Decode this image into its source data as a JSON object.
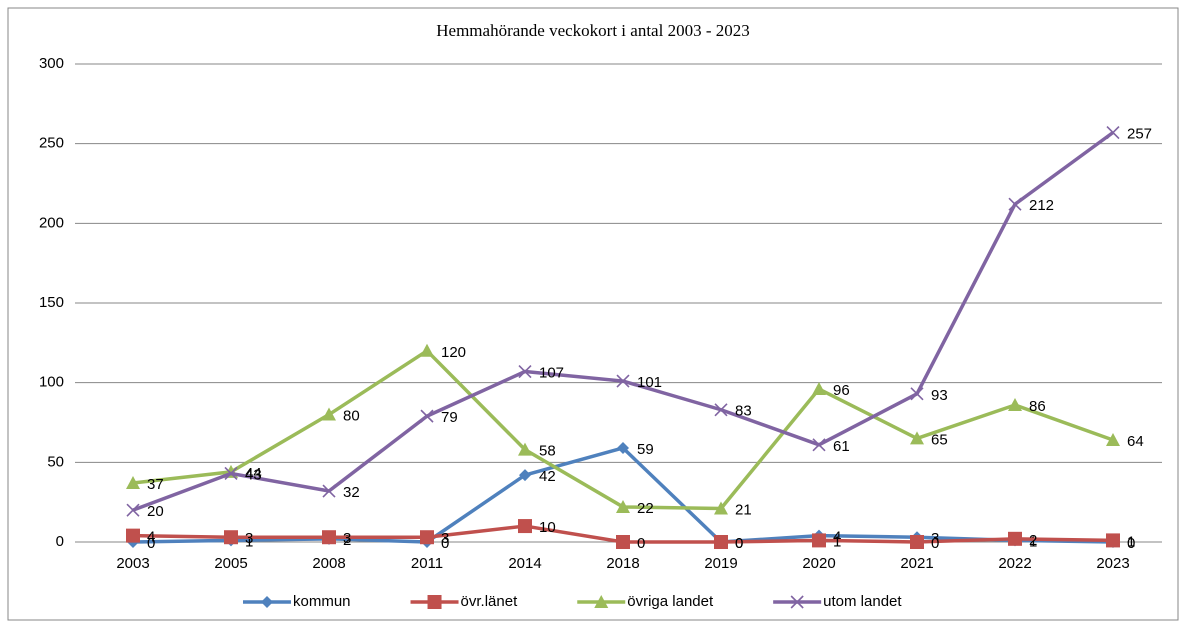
{
  "chart_data": {
    "type": "line",
    "title": "Hemmahörande veckokort i antal 2003 - 2023",
    "categories": [
      "2003",
      "2005",
      "2008",
      "2011",
      "2014",
      "2018",
      "2019",
      "2020",
      "2021",
      "2022",
      "2023"
    ],
    "series": [
      {
        "name": "kommun",
        "color": "#4f81bd",
        "marker": "diamond",
        "values": [
          0,
          1,
          2,
          0,
          42,
          59,
          0,
          4,
          3,
          1,
          0
        ]
      },
      {
        "name": "övr.länet",
        "color": "#c0504d",
        "marker": "square",
        "values": [
          4,
          3,
          3,
          3,
          10,
          0,
          0,
          1,
          0,
          2,
          1
        ]
      },
      {
        "name": "övriga landet",
        "color": "#9bbb59",
        "marker": "triangle",
        "values": [
          37,
          44,
          80,
          120,
          58,
          22,
          21,
          96,
          65,
          86,
          64
        ]
      },
      {
        "name": "utom landet",
        "color": "#8064a2",
        "marker": "x",
        "values": [
          20,
          43,
          32,
          79,
          107,
          101,
          83,
          61,
          93,
          212,
          257
        ]
      }
    ],
    "ylim": [
      0,
      300
    ],
    "yticks": [
      0,
      50,
      100,
      150,
      200,
      250,
      300
    ],
    "grid": true,
    "legend": "bottom",
    "data_labels": true
  }
}
